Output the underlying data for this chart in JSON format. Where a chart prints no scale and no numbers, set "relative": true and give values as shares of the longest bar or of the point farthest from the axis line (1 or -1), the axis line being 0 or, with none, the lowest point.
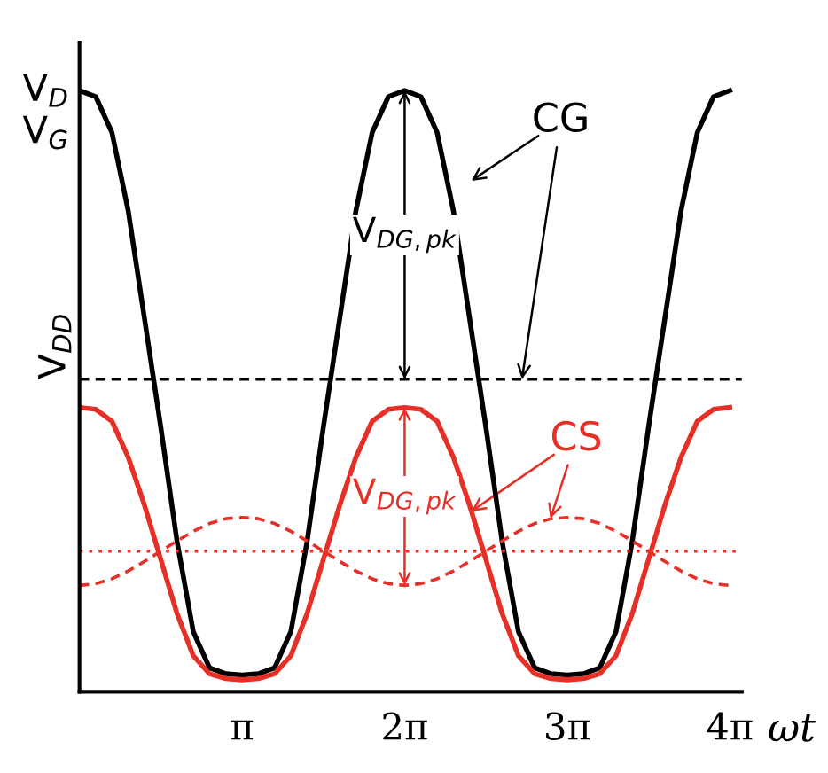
{
  "chart_data": {
    "type": "line",
    "relative": true,
    "xlabel": "ωt",
    "grid": false,
    "x": [
      0,
      0.314,
      0.628,
      0.942,
      1.257,
      1.571,
      1.885,
      2.199,
      2.513,
      2.827,
      3.142,
      3.456,
      3.77,
      4.084,
      4.398,
      4.712,
      5.027,
      5.341,
      5.655,
      5.969,
      6.283,
      6.597,
      6.912,
      7.226,
      7.54,
      7.854,
      8.168,
      8.482,
      8.796,
      9.111,
      9.425,
      9.739,
      10.053,
      10.367,
      10.681,
      10.996,
      11.31,
      11.624,
      11.938,
      12.252,
      12.566
    ],
    "xlim": [
      0,
      12.8
    ],
    "xticks": [
      {
        "value": 3.142,
        "label": "π"
      },
      {
        "value": 6.283,
        "label": "2π"
      },
      {
        "value": 9.425,
        "label": "3π"
      },
      {
        "value": 12.566,
        "label": "4π"
      }
    ],
    "series": [
      {
        "color": "#000000",
        "line_style": "solid",
        "values": [
          1,
          0.99,
          0.93,
          0.8,
          0.62,
          0.44,
          0.25,
          0.1,
          0.04,
          0.03,
          0.028,
          0.03,
          0.04,
          0.1,
          0.25,
          0.44,
          0.62,
          0.8,
          0.93,
          0.99,
          1,
          0.99,
          0.93,
          0.8,
          0.62,
          0.44,
          0.25,
          0.1,
          0.04,
          0.03,
          0.028,
          0.03,
          0.04,
          0.1,
          0.25,
          0.44,
          0.62,
          0.8,
          0.93,
          0.99,
          1
        ]
      },
      {
        "color": "#e53027",
        "line_style": "solid",
        "values": [
          0.473,
          0.47,
          0.45,
          0.39,
          0.31,
          0.22,
          0.13,
          0.06,
          0.03,
          0.022,
          0.02,
          0.022,
          0.03,
          0.06,
          0.13,
          0.22,
          0.31,
          0.39,
          0.45,
          0.47,
          0.473,
          0.47,
          0.45,
          0.39,
          0.31,
          0.22,
          0.13,
          0.06,
          0.03,
          0.022,
          0.02,
          0.022,
          0.03,
          0.06,
          0.13,
          0.22,
          0.31,
          0.39,
          0.45,
          0.47,
          0.473
        ]
      },
      {
        "color": "#e53027",
        "line_style": "dashed",
        "values": [
          0.177,
          0.18,
          0.188,
          0.201,
          0.217,
          0.234,
          0.251,
          0.267,
          0.28,
          0.288,
          0.29,
          0.288,
          0.28,
          0.267,
          0.251,
          0.234,
          0.217,
          0.201,
          0.188,
          0.18,
          0.177,
          0.18,
          0.188,
          0.201,
          0.217,
          0.234,
          0.251,
          0.267,
          0.28,
          0.288,
          0.29,
          0.288,
          0.28,
          0.267,
          0.251,
          0.234,
          0.217,
          0.201,
          0.188,
          0.18,
          0.177
        ]
      }
    ],
    "ref_lines": [
      {
        "axis": "y",
        "value": 0.52,
        "label": "V$_{DD}$",
        "color": "#000000",
        "line_style": "dashed"
      },
      {
        "axis": "y",
        "value": 0.234,
        "color": "#e53027",
        "line_style": "dotted"
      }
    ],
    "annotations": [
      "V$_{D}$",
      "V$_{G}$",
      "CG",
      "CS",
      "V$_{DG,pk}$",
      "V$_{DG,pk}$"
    ]
  }
}
